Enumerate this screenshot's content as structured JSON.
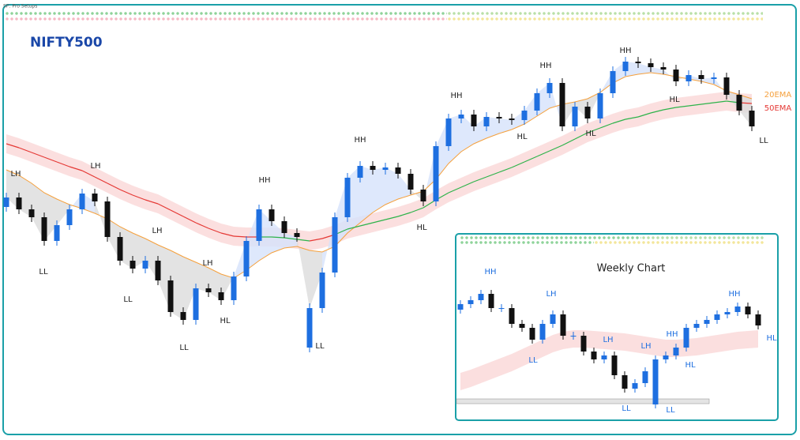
{
  "source": "SP: Pro Setups",
  "chart_data": [
    {
      "type": "candlestick",
      "title": "NIFTY500",
      "ylim": [
        0,
        557
      ],
      "up_color": "#1e6fe0",
      "down_color": "#111111",
      "cloud_colors": {
        "above": "#d6e2fb",
        "below": "#dcdcdc"
      },
      "band_color": "#f9d4d4",
      "open": [
        295,
        307,
        292,
        282,
        252,
        272,
        292,
        312,
        302,
        257,
        227,
        217,
        227,
        202,
        162,
        152,
        192,
        187,
        177,
        207,
        252,
        292,
        277,
        262,
        117,
        167,
        212,
        282,
        332,
        347,
        342,
        345,
        337,
        317,
        302,
        372,
        407,
        412,
        397,
        409,
        407,
        405,
        417,
        439,
        452,
        397,
        422,
        407,
        439,
        467,
        479,
        477,
        472,
        469,
        454,
        462,
        457,
        459,
        437,
        417
      ],
      "high": [
        313,
        313,
        298,
        288,
        278,
        298,
        318,
        318,
        308,
        263,
        233,
        233,
        233,
        208,
        168,
        198,
        198,
        193,
        213,
        258,
        298,
        298,
        283,
        268,
        173,
        218,
        288,
        338,
        353,
        353,
        351,
        351,
        343,
        323,
        378,
        413,
        418,
        418,
        415,
        415,
        413,
        423,
        445,
        458,
        458,
        428,
        428,
        445,
        473,
        485,
        485,
        483,
        478,
        475,
        468,
        468,
        465,
        465,
        443,
        423
      ],
      "low": [
        289,
        286,
        276,
        246,
        246,
        266,
        286,
        296,
        251,
        221,
        211,
        211,
        196,
        156,
        146,
        146,
        181,
        171,
        171,
        201,
        246,
        271,
        256,
        251,
        111,
        161,
        206,
        276,
        326,
        336,
        336,
        331,
        311,
        296,
        296,
        366,
        401,
        391,
        391,
        401,
        399,
        399,
        411,
        433,
        391,
        391,
        401,
        401,
        433,
        461,
        471,
        466,
        463,
        448,
        448,
        451,
        451,
        431,
        411,
        391
      ],
      "close": [
        307,
        292,
        282,
        252,
        272,
        292,
        312,
        302,
        257,
        227,
        217,
        227,
        202,
        162,
        152,
        192,
        187,
        177,
        207,
        252,
        292,
        277,
        262,
        257,
        167,
        212,
        282,
        332,
        347,
        342,
        345,
        337,
        317,
        302,
        372,
        407,
        412,
        397,
        409,
        407,
        405,
        417,
        439,
        452,
        397,
        422,
        407,
        439,
        467,
        479,
        477,
        472,
        469,
        454,
        462,
        457,
        459,
        437,
        417,
        397
      ],
      "series": [
        {
          "name": "20EMA",
          "color": "#f5a03c",
          "values": [
            342,
            335,
            325,
            313,
            305,
            298,
            293,
            287,
            280,
            270,
            262,
            255,
            247,
            240,
            232,
            225,
            218,
            210,
            205,
            215,
            227,
            237,
            243,
            245,
            240,
            238,
            245,
            262,
            275,
            288,
            298,
            305,
            310,
            315,
            330,
            350,
            365,
            375,
            382,
            388,
            393,
            400,
            410,
            420,
            425,
            428,
            432,
            440,
            452,
            460,
            463,
            465,
            463,
            460,
            457,
            454,
            450,
            442,
            437,
            432
          ]
        },
        {
          "name": "50EMA",
          "color": "#e53935",
          "color_above": "#2db34a",
          "values": [
            375,
            370,
            364,
            358,
            352,
            346,
            341,
            333,
            325,
            317,
            310,
            304,
            299,
            291,
            283,
            275,
            268,
            262,
            258,
            257,
            257,
            257,
            256,
            254,
            252,
            255,
            260,
            267,
            271,
            275,
            279,
            283,
            288,
            294,
            304,
            313,
            320,
            327,
            333,
            339,
            345,
            352,
            359,
            366,
            373,
            381,
            389,
            395,
            401,
            406,
            409,
            414,
            418,
            421,
            423,
            425,
            427,
            429,
            427,
            426
          ]
        }
      ],
      "annotations": [
        "LH",
        "LH",
        "LL",
        "LH",
        "LL",
        "LH",
        "LL",
        "HL",
        "HH",
        "LL",
        "HH",
        "HL",
        "HH",
        "HL",
        "HH",
        "HL",
        "HH",
        "HL",
        "LL"
      ],
      "annotation_color": "#222222"
    },
    {
      "type": "candlestick",
      "title": "Weekly Chart",
      "ylim": [
        0,
        557
      ],
      "up_color": "#1e6fe0",
      "down_color": "#111111",
      "band_color": "#f9d4d4",
      "open": [
        165,
        172,
        177,
        185,
        167,
        167,
        147,
        142,
        127,
        147,
        159,
        132,
        132,
        112,
        102,
        107,
        82,
        65,
        72,
        45,
        102,
        107,
        117,
        142,
        147,
        152,
        159,
        162,
        169,
        159
      ],
      "high": [
        177,
        182,
        190,
        190,
        172,
        172,
        152,
        147,
        152,
        164,
        164,
        137,
        137,
        117,
        112,
        112,
        87,
        77,
        92,
        107,
        112,
        122,
        147,
        152,
        157,
        164,
        167,
        174,
        174,
        164
      ],
      "low": [
        160,
        167,
        172,
        162,
        162,
        142,
        137,
        122,
        122,
        142,
        127,
        127,
        107,
        97,
        97,
        77,
        60,
        60,
        67,
        40,
        97,
        102,
        112,
        137,
        142,
        147,
        154,
        157,
        154,
        140
      ],
      "close": [
        172,
        177,
        185,
        167,
        167,
        147,
        142,
        127,
        147,
        159,
        132,
        132,
        112,
        102,
        107,
        82,
        65,
        72,
        87,
        102,
        107,
        117,
        142,
        147,
        152,
        159,
        162,
        169,
        159,
        145
      ],
      "series": [
        {
          "name": "50EMA",
          "color": "#f9d4d4",
          "values": [
            74,
            78,
            83,
            88,
            93,
            98,
            104,
            110,
            116,
            122,
            126,
            128,
            128,
            127,
            126,
            125,
            124,
            122,
            120,
            118,
            116,
            116,
            117,
            118,
            120,
            122,
            124,
            126,
            127,
            128
          ]
        }
      ],
      "annotations": [
        "HH",
        "LH",
        "LL",
        "LH",
        "LH",
        "HH",
        "HL",
        "LL",
        "LL",
        "HH",
        "HL"
      ],
      "annotation_color": "#1e6fe0"
    }
  ]
}
